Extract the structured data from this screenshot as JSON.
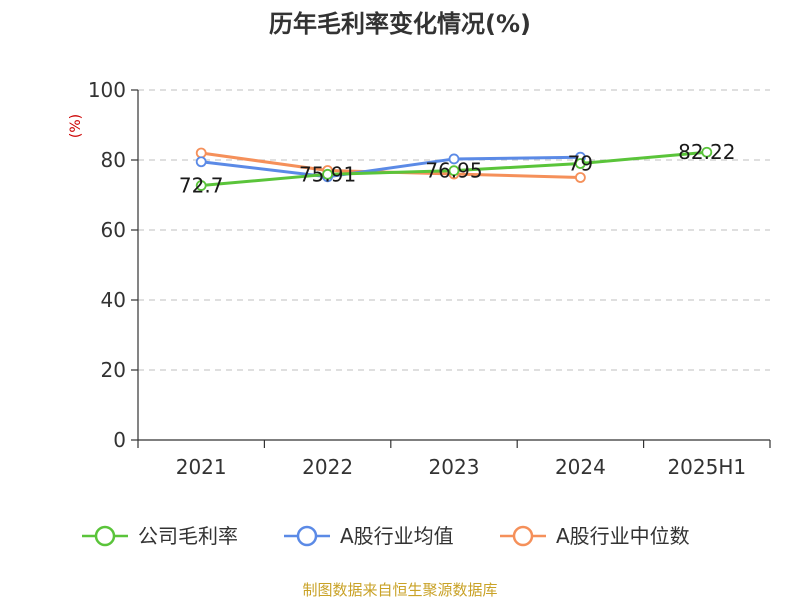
{
  "chart_data": {
    "type": "line",
    "title": "历年毛利率变化情况(%)",
    "ylabel": "(%)",
    "categories": [
      "2021",
      "2022",
      "2023",
      "2024",
      "2025H1"
    ],
    "yticks": [
      "0",
      "20",
      "40",
      "60",
      "80",
      "100"
    ],
    "ylim": [
      0,
      100
    ],
    "grid": true,
    "legend_position": "bottom",
    "series": [
      {
        "name": "公司毛利率",
        "color": "#5ac43a",
        "values": [
          72.7,
          75.91,
          76.95,
          79,
          82.22
        ],
        "labels": [
          "72.7",
          "75.91",
          "76.95",
          "79",
          "82.22"
        ]
      },
      {
        "name": "A股行业均值",
        "color": "#5b8ae6",
        "values": [
          79.5,
          75.2,
          80.3,
          80.8,
          null
        ],
        "labels": []
      },
      {
        "name": "A股行业中位数",
        "color": "#f5905a",
        "values": [
          82.0,
          77.0,
          76.0,
          75.0,
          null
        ],
        "labels": []
      }
    ]
  },
  "source": "制图数据来自恒生聚源数据库"
}
